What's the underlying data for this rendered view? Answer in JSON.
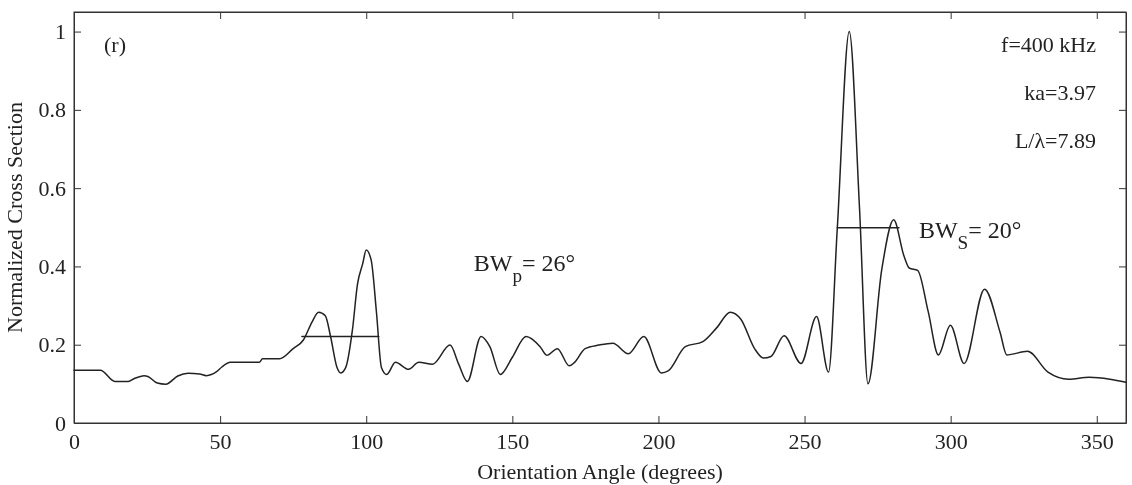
{
  "chart_data": {
    "type": "line",
    "xlabel": "Orientation Angle (degrees)",
    "ylabel": "Normalized Cross Section",
    "xlim": [
      0,
      360
    ],
    "ylim": [
      0,
      1.05
    ],
    "xticks": [
      0,
      50,
      100,
      150,
      200,
      250,
      300,
      350
    ],
    "yticks": [
      0,
      {
        "value": 0.2,
        "label": "0.2"
      },
      {
        "value": 0.4,
        "label": "0.4"
      },
      {
        "value": 0.6,
        "label": "0.6"
      },
      {
        "value": 0.8,
        "label": "0.8"
      },
      1
    ],
    "grid": false,
    "marker": "none",
    "line_style": "solid",
    "annotations": [
      "(r)",
      "f=400 kHz",
      "ka=3.97",
      "L/λ=7.89",
      "BW$_{p}$= 26°",
      "BW$_{S}$= 20°"
    ],
    "series": [
      {
        "color": "#222222",
        "x": [
          0,
          9,
          14,
          18.6,
          20.5,
          24,
          25.3,
          28.5,
          31.4,
          35.5,
          39,
          43,
          45.3,
          48.8,
          50.6,
          53.5,
          63.4,
          64.5,
          70.3,
          75,
          78.5,
          81.4,
          83.7,
          86,
          87.8,
          90,
          91.3,
          93,
          95.3,
          97,
          98.8,
          100,
          101.7,
          103.5,
          105.2,
          107,
          110,
          114.5,
          118,
          122.7,
          128.7,
          131.6,
          134.6,
          139.3,
          142.3,
          145.9,
          150,
          154.7,
          159.5,
          161.8,
          165.4,
          169.5,
          171.3,
          174.9,
          179.6,
          184.4,
          189.7,
          195,
          201,
          203.3,
          209.2,
          215.2,
          219.9,
          224.6,
          228.2,
          232.9,
          235.9,
          238.5,
          243,
          248.8,
          254.1,
          258.2,
          261.2,
          265.3,
          268.8,
          271.7,
          276.4,
          280.5,
          284,
          285.8,
          288.7,
          292.3,
          295.8,
          299.9,
          304.6,
          311.6,
          316.9,
          319.2,
          326.3,
          333.3,
          340.4,
          347.4,
          354.5,
          360
        ],
        "values": [
          0.135,
          0.135,
          0.106,
          0.106,
          0.113,
          0.121,
          0.119,
          0.102,
          0.099,
          0.12,
          0.127,
          0.125,
          0.121,
          0.131,
          0.143,
          0.155,
          0.155,
          0.164,
          0.164,
          0.19,
          0.212,
          0.257,
          0.283,
          0.274,
          0.221,
          0.142,
          0.128,
          0.142,
          0.239,
          0.354,
          0.407,
          0.442,
          0.416,
          0.283,
          0.142,
          0.124,
          0.155,
          0.137,
          0.155,
          0.15,
          0.199,
          0.151,
          0.106,
          0.221,
          0.195,
          0.124,
          0.168,
          0.221,
          0.195,
          0.173,
          0.19,
          0.146,
          0.155,
          0.19,
          0.199,
          0.204,
          0.177,
          0.221,
          0.128,
          0.133,
          0.195,
          0.208,
          0.243,
          0.283,
          0.265,
          0.19,
          0.166,
          0.17,
          0.223,
          0.152,
          0.272,
          0.13,
          0.497,
          1.0,
          0.55,
          0.1,
          0.391,
          0.519,
          0.427,
          0.396,
          0.39,
          0.285,
          0.174,
          0.25,
          0.152,
          0.342,
          0.232,
          0.174,
          0.183,
          0.13,
          0.112,
          0.117,
          0.112,
          0.104
        ]
      },
      {
        "color": "#222222",
        "x": [
          78,
          104.3
        ],
        "values": [
          0.221,
          0.221
        ]
      },
      {
        "color": "#222222",
        "x": [
          261.2,
          282.3
        ],
        "values": [
          0.499,
          0.499
        ]
      }
    ]
  }
}
